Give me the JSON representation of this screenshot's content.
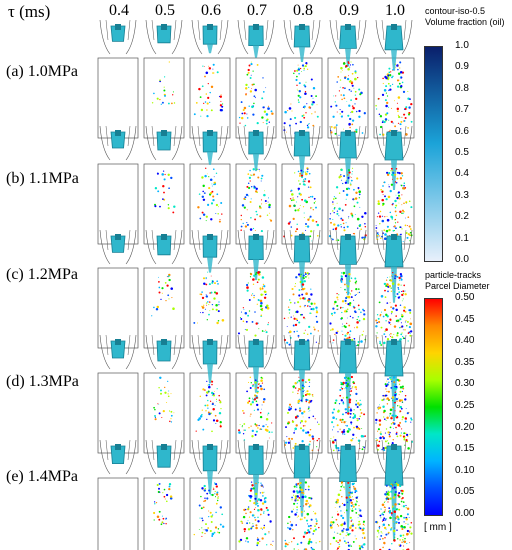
{
  "figure": {
    "tau_label": "τ (ms)",
    "time_columns": [
      "0.4",
      "0.5",
      "0.6",
      "0.7",
      "0.8",
      "0.9",
      "1.0"
    ],
    "rows": [
      {
        "label": "(a) 1.0MPa",
        "spray_level": 0.35
      },
      {
        "label": "(b) 1.1MPa",
        "spray_level": 0.5
      },
      {
        "label": "(c) 1.2MPa",
        "spray_level": 0.6
      },
      {
        "label": "(d) 1.3MPa",
        "spray_level": 0.75
      },
      {
        "label": "(e) 1.4MPa",
        "spray_level": 0.9
      }
    ]
  },
  "colorbar_volume": {
    "title_line1": "contour-iso-0.5",
    "title_line2": "Volume fraction (oil)",
    "ticks": [
      "1.0",
      "0.9",
      "0.8",
      "0.7",
      "0.6",
      "0.5",
      "0.4",
      "0.3",
      "0.2",
      "0.1",
      "0.0"
    ],
    "color_top": "#0a1f6b",
    "color_mid": "#1ba3d8",
    "color_bottom": "#e8f0fb"
  },
  "colorbar_parcel": {
    "title_line1": "particle-tracks",
    "title_line2": "Parcel Diameter",
    "ticks": [
      "0.50",
      "0.45",
      "0.40",
      "0.35",
      "0.30",
      "0.25",
      "0.20",
      "0.15",
      "0.10",
      "0.05",
      "0.00"
    ],
    "unit": "[ mm ]",
    "colors": [
      "#ff0000",
      "#ff8a00",
      "#ffd400",
      "#a8ff00",
      "#00e000",
      "#00e6c8",
      "#00b4ff",
      "#0050ff",
      "#0000ff"
    ]
  },
  "colors": {
    "nozzle_body": "#2fb7cc",
    "nozzle_dark": "#177f93",
    "frame_stroke": "#555555"
  }
}
